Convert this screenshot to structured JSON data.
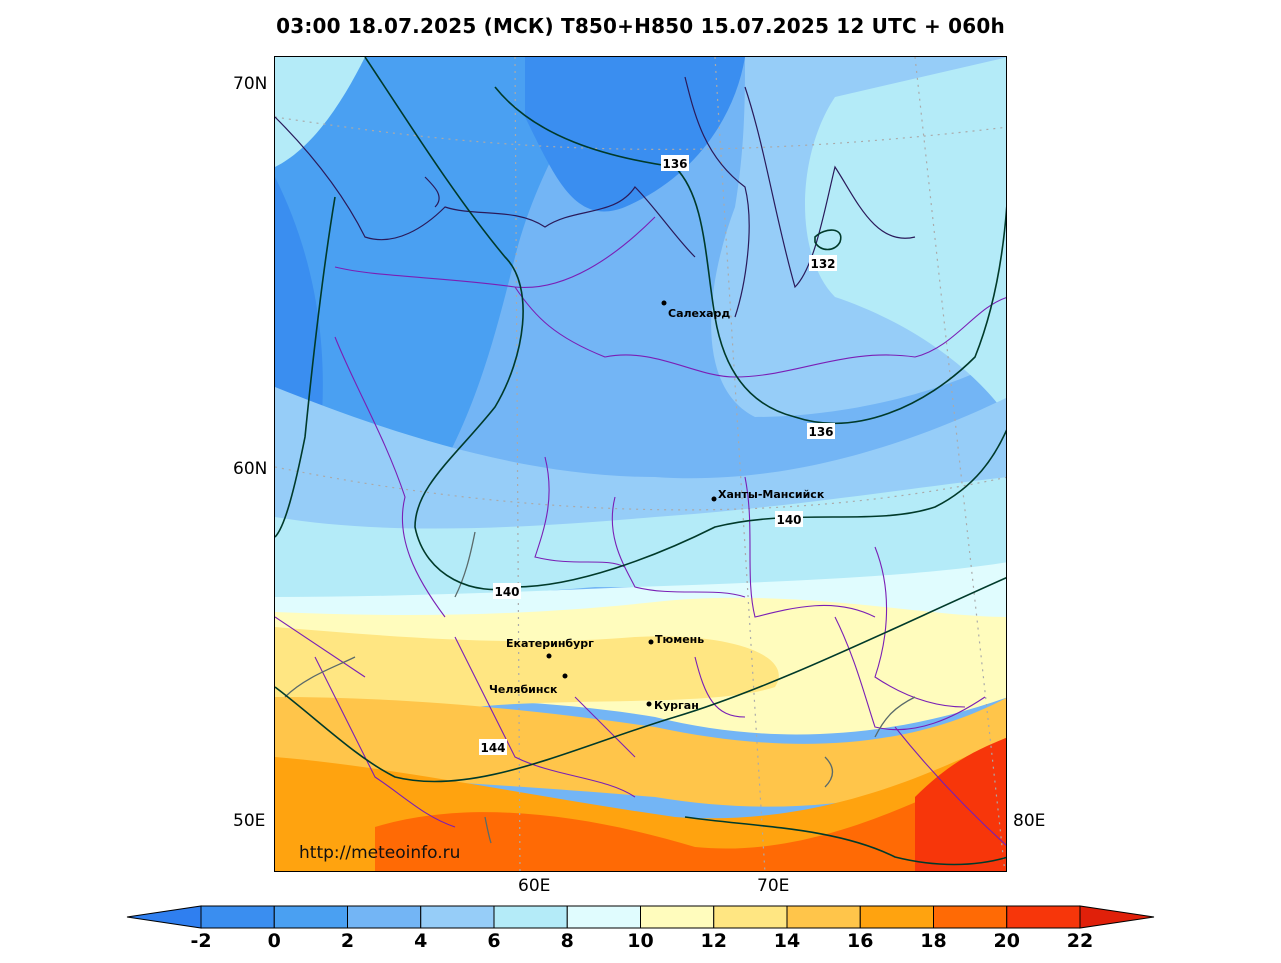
{
  "title": "03:00 18.07.2025 (МСК) T850+H850 15.07.2025 12 UTC + 060h",
  "map": {
    "lat_labels": [
      "70N",
      "60N",
      "50E"
    ],
    "lon_labels": [
      "60E",
      "70E",
      "80E"
    ],
    "watermark": "http://meteoinfo.ru",
    "cities": [
      {
        "name": "Салехард"
      },
      {
        "name": "Ханты-Мансийск"
      },
      {
        "name": "Екатеринбург"
      },
      {
        "name": "Тюмень"
      },
      {
        "name": "Челябинск"
      },
      {
        "name": "Курган"
      }
    ],
    "contour_labels": [
      "136",
      "132",
      "136",
      "140",
      "140",
      "144"
    ]
  },
  "colorbar": {
    "ticks": [
      "-2",
      "0",
      "2",
      "4",
      "6",
      "8",
      "10",
      "12",
      "14",
      "16",
      "18",
      "20",
      "22"
    ],
    "colors": [
      "#3a8ef0",
      "#4aa0f2",
      "#73b5f5",
      "#96cdf8",
      "#b4ebf8",
      "#e0fcfe",
      "#fffcbd",
      "#ffe682",
      "#ffc54a",
      "#ffa30f",
      "#ff6a05",
      "#f7360a"
    ],
    "min_color": "#2f7ff0",
    "max_color": "#e0200a"
  }
}
